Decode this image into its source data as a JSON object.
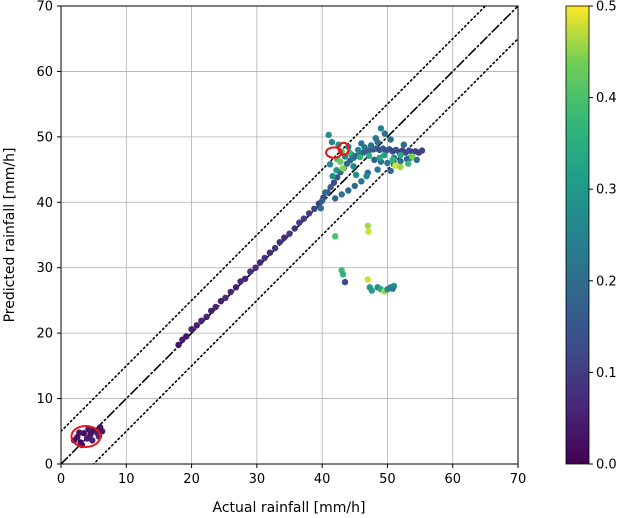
{
  "chart_data": {
    "type": "scatter",
    "xlabel": "Actual rainfall [mm/h]",
    "ylabel": "Predicted rainfall [mm/h]",
    "xlim": [
      0,
      70
    ],
    "ylim": [
      0,
      70
    ],
    "xticks": [
      0,
      10,
      20,
      30,
      40,
      50,
      60,
      70
    ],
    "yticks": [
      0,
      10,
      20,
      30,
      40,
      50,
      60,
      70
    ],
    "grid": true,
    "reference_lines": [
      {
        "style": "dash-dot",
        "slope": 1,
        "offset": 0
      },
      {
        "style": "dotted",
        "slope": 1,
        "offset": 5
      },
      {
        "style": "dotted",
        "slope": 1,
        "offset": -5
      }
    ],
    "colorbar": {
      "colormap": "viridis",
      "range": [
        0,
        0.5
      ],
      "ticks": [
        "0.0",
        "0.1",
        "0.2",
        "0.3",
        "0.4",
        "0.5"
      ]
    },
    "highlight_color": "#e8141c",
    "highlights": [
      {
        "x": 3.8,
        "y": 4.2,
        "rx": 2.2,
        "ry": 1.6
      },
      {
        "x": 41.8,
        "y": 47.6,
        "rx": 1.2,
        "ry": 0.8
      },
      {
        "x": 43.3,
        "y": 48.2,
        "rx": 0.8,
        "ry": 0.9
      }
    ],
    "series": [
      {
        "points": [
          [
            2.0,
            3.6,
            0.02
          ],
          [
            2.5,
            4.1,
            0.03
          ],
          [
            3.0,
            3.3,
            0.01
          ],
          [
            3.5,
            4.7,
            0.02
          ],
          [
            4.0,
            3.9,
            0.04
          ],
          [
            4.5,
            4.5,
            0.03
          ],
          [
            5.0,
            5.1,
            0.02
          ],
          [
            5.5,
            4.8,
            0.05
          ],
          [
            6.0,
            5.6,
            0.03
          ],
          [
            3.2,
            2.9,
            0.02
          ],
          [
            4.2,
            5.3,
            0.04
          ],
          [
            5.8,
            4.2,
            0.06
          ],
          [
            2.8,
            4.8,
            0.03
          ],
          [
            4.8,
            3.6,
            0.05
          ],
          [
            6.3,
            5.0,
            0.04
          ],
          [
            18.0,
            18.2,
            0.03
          ],
          [
            18.6,
            19.0,
            0.04
          ],
          [
            19.2,
            19.5,
            0.03
          ],
          [
            20.0,
            20.6,
            0.05
          ],
          [
            20.8,
            21.2,
            0.04
          ],
          [
            21.5,
            21.9,
            0.06
          ],
          [
            22.3,
            22.5,
            0.05
          ],
          [
            23.0,
            23.4,
            0.04
          ],
          [
            23.7,
            24.0,
            0.06
          ],
          [
            24.5,
            24.9,
            0.05
          ],
          [
            25.2,
            25.4,
            0.07
          ],
          [
            26.0,
            26.3,
            0.06
          ],
          [
            26.8,
            27.0,
            0.05
          ],
          [
            27.5,
            27.9,
            0.07
          ],
          [
            28.2,
            28.3,
            0.06
          ],
          [
            29.0,
            29.4,
            0.08
          ],
          [
            29.8,
            30.0,
            0.07
          ],
          [
            30.5,
            30.8,
            0.06
          ],
          [
            31.2,
            31.5,
            0.08
          ],
          [
            32.0,
            32.3,
            0.07
          ],
          [
            32.8,
            33.0,
            0.09
          ],
          [
            33.5,
            33.9,
            0.08
          ],
          [
            34.2,
            34.6,
            0.07
          ],
          [
            35.0,
            35.2,
            0.09
          ],
          [
            35.8,
            36.0,
            0.08
          ],
          [
            36.5,
            36.9,
            0.1
          ],
          [
            37.2,
            37.5,
            0.09
          ],
          [
            38.0,
            38.3,
            0.1
          ],
          [
            38.8,
            39.0,
            0.11
          ],
          [
            39.5,
            39.8,
            0.1
          ],
          [
            40.2,
            40.7,
            0.12
          ],
          [
            40.8,
            41.5,
            0.14
          ],
          [
            41.3,
            42.3,
            0.16
          ],
          [
            41.8,
            43.0,
            0.13
          ],
          [
            42.3,
            43.8,
            0.15
          ],
          [
            42.8,
            44.6,
            0.18
          ],
          [
            43.3,
            45.2,
            0.17
          ],
          [
            43.8,
            45.9,
            0.2
          ],
          [
            44.3,
            46.4,
            0.19
          ],
          [
            44.8,
            46.8,
            0.21
          ],
          [
            45.3,
            47.1,
            0.18
          ],
          [
            45.8,
            47.4,
            0.2
          ],
          [
            46.3,
            47.6,
            0.17
          ],
          [
            46.8,
            47.9,
            0.16
          ],
          [
            47.3,
            48.0,
            0.19
          ],
          [
            47.8,
            48.1,
            0.15
          ],
          [
            48.3,
            48.2,
            0.17
          ],
          [
            48.8,
            48.0,
            0.14
          ],
          [
            49.3,
            48.2,
            0.16
          ],
          [
            49.8,
            47.9,
            0.13
          ],
          [
            50.3,
            48.1,
            0.15
          ],
          [
            50.8,
            47.8,
            0.12
          ],
          [
            51.3,
            48.0,
            0.14
          ],
          [
            51.8,
            47.7,
            0.12
          ],
          [
            52.3,
            47.9,
            0.11
          ],
          [
            52.8,
            47.6,
            0.13
          ],
          [
            53.3,
            47.9,
            0.12
          ],
          [
            53.8,
            47.7,
            0.11
          ],
          [
            54.3,
            47.8,
            0.12
          ],
          [
            54.8,
            47.6,
            0.1
          ],
          [
            55.3,
            47.9,
            0.11
          ],
          [
            48.0,
            46.5,
            0.18
          ],
          [
            49.0,
            46.2,
            0.2
          ],
          [
            50.0,
            46.0,
            0.22
          ],
          [
            51.0,
            45.8,
            0.19
          ],
          [
            52.0,
            46.3,
            0.21
          ],
          [
            53.0,
            46.6,
            0.18
          ],
          [
            47.0,
            44.5,
            0.2
          ],
          [
            48.5,
            45.0,
            0.22
          ],
          [
            50.5,
            44.8,
            0.19
          ],
          [
            46.0,
            43.2,
            0.21
          ],
          [
            45.0,
            42.5,
            0.19
          ],
          [
            44.0,
            41.8,
            0.2
          ],
          [
            43.0,
            41.2,
            0.22
          ],
          [
            42.0,
            40.6,
            0.18
          ],
          [
            43.5,
            47.0,
            0.25
          ],
          [
            44.5,
            47.3,
            0.23
          ],
          [
            45.5,
            48.0,
            0.26
          ],
          [
            46.5,
            48.4,
            0.24
          ],
          [
            47.5,
            48.7,
            0.22
          ],
          [
            48.5,
            49.2,
            0.2
          ],
          [
            49.0,
            51.3,
            0.24
          ],
          [
            49.6,
            50.5,
            0.21
          ],
          [
            48.2,
            49.8,
            0.23
          ],
          [
            41.0,
            50.3,
            0.28
          ],
          [
            41.5,
            49.2,
            0.26
          ],
          [
            42.5,
            48.8,
            0.3
          ],
          [
            44.0,
            48.5,
            0.24
          ],
          [
            46.0,
            49.0,
            0.22
          ],
          [
            50.5,
            49.6,
            0.2
          ],
          [
            52.5,
            48.8,
            0.19
          ],
          [
            53.5,
            46.8,
            0.22
          ],
          [
            54.5,
            46.5,
            0.2
          ],
          [
            51.0,
            46.8,
            0.24
          ],
          [
            44.8,
            45.5,
            0.26
          ],
          [
            45.2,
            44.2,
            0.28
          ],
          [
            46.8,
            44.0,
            0.27
          ],
          [
            42.2,
            44.9,
            0.3
          ],
          [
            41.6,
            44.0,
            0.28
          ],
          [
            41.2,
            45.8,
            0.26
          ],
          [
            49.5,
            47.2,
            0.32
          ],
          [
            50.8,
            46.5,
            0.36
          ],
          [
            52.0,
            47.2,
            0.34
          ],
          [
            53.2,
            45.9,
            0.38
          ],
          [
            48.8,
            46.8,
            0.33
          ],
          [
            42.3,
            46.6,
            0.4
          ],
          [
            43.0,
            47.8,
            0.42
          ],
          [
            44.2,
            47.6,
            0.38
          ],
          [
            45.8,
            46.9,
            0.36
          ],
          [
            47.2,
            47.1,
            0.35
          ],
          [
            51.2,
            45.6,
            0.48
          ],
          [
            52.0,
            45.4,
            0.46
          ],
          [
            43.2,
            45.2,
            0.45
          ],
          [
            42.8,
            46.2,
            0.43
          ],
          [
            53.8,
            47.0,
            0.44
          ],
          [
            47.0,
            36.4,
            0.46
          ],
          [
            47.1,
            35.5,
            0.48
          ],
          [
            42.0,
            34.8,
            0.4
          ],
          [
            43.0,
            29.6,
            0.38
          ],
          [
            43.2,
            29.0,
            0.36
          ],
          [
            43.5,
            27.8,
            0.12
          ],
          [
            47.0,
            28.2,
            0.48
          ],
          [
            47.3,
            27.0,
            0.3
          ],
          [
            47.6,
            26.5,
            0.32
          ],
          [
            48.5,
            27.0,
            0.28
          ],
          [
            49.0,
            26.7,
            0.34
          ],
          [
            49.5,
            26.4,
            0.46
          ],
          [
            50.0,
            26.7,
            0.27
          ],
          [
            50.5,
            27.0,
            0.25
          ],
          [
            51.0,
            27.2,
            0.3
          ],
          [
            50.8,
            26.8,
            0.24
          ],
          [
            40.5,
            41.5,
            0.2
          ],
          [
            40.0,
            40.2,
            0.18
          ],
          [
            39.8,
            39.1,
            0.21
          ]
        ]
      }
    ]
  }
}
